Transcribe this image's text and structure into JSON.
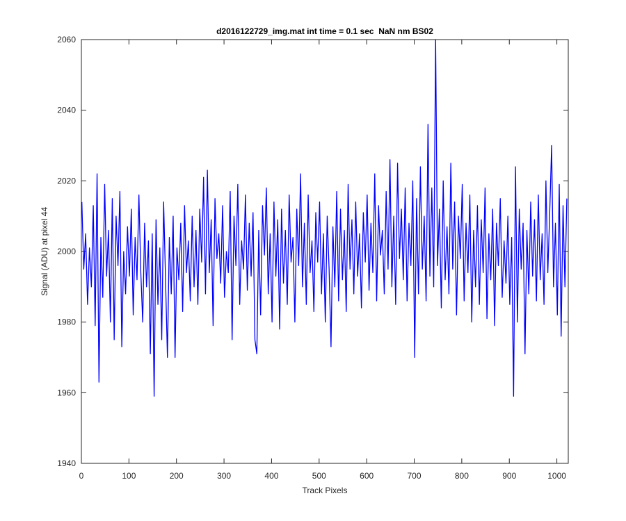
{
  "chart_data": {
    "type": "line",
    "title": "d2016122729_img.mat int time = 0.1 sec  NaN nm BS02",
    "x_label": "Track Pixels",
    "y_label": "Signal (ADU) at pixel 44",
    "color": "#0000ff",
    "xlim": [
      0,
      1024
    ],
    "xticks": [
      0,
      100,
      200,
      300,
      400,
      500,
      600,
      700,
      800,
      900,
      1000
    ],
    "ylim": [
      1940,
      2060
    ],
    "yticks": [
      1940,
      1960,
      1980,
      2000,
      2020,
      2040,
      2060
    ],
    "x": [
      1,
      5,
      9,
      13,
      17,
      21,
      25,
      29,
      33,
      37,
      41,
      45,
      49,
      53,
      57,
      61,
      65,
      69,
      73,
      77,
      81,
      85,
      89,
      93,
      97,
      101,
      105,
      109,
      113,
      117,
      121,
      125,
      129,
      133,
      137,
      141,
      145,
      149,
      153,
      157,
      161,
      165,
      169,
      173,
      177,
      181,
      185,
      189,
      193,
      197,
      201,
      205,
      209,
      213,
      217,
      221,
      225,
      229,
      233,
      237,
      241,
      245,
      249,
      253,
      257,
      261,
      265,
      269,
      273,
      277,
      281,
      285,
      289,
      293,
      297,
      301,
      305,
      309,
      313,
      317,
      321,
      325,
      329,
      333,
      337,
      341,
      345,
      349,
      353,
      357,
      361,
      365,
      369,
      373,
      377,
      381,
      385,
      389,
      393,
      397,
      401,
      405,
      409,
      413,
      417,
      421,
      425,
      429,
      433,
      437,
      441,
      445,
      449,
      453,
      457,
      461,
      465,
      469,
      473,
      477,
      481,
      485,
      489,
      493,
      497,
      501,
      505,
      509,
      513,
      517,
      521,
      525,
      529,
      533,
      537,
      541,
      545,
      549,
      553,
      557,
      561,
      565,
      569,
      573,
      577,
      581,
      585,
      589,
      593,
      597,
      601,
      605,
      609,
      613,
      617,
      621,
      625,
      629,
      633,
      637,
      641,
      645,
      649,
      653,
      657,
      661,
      665,
      669,
      673,
      677,
      681,
      685,
      689,
      693,
      697,
      701,
      705,
      709,
      713,
      717,
      721,
      725,
      729,
      733,
      737,
      741,
      745,
      749,
      753,
      757,
      761,
      765,
      769,
      773,
      777,
      781,
      785,
      789,
      793,
      797,
      801,
      805,
      809,
      813,
      817,
      821,
      825,
      829,
      833,
      837,
      841,
      845,
      849,
      853,
      857,
      861,
      865,
      869,
      873,
      877,
      881,
      885,
      889,
      893,
      897,
      901,
      905,
      909,
      913,
      917,
      921,
      925,
      929,
      933,
      937,
      941,
      945,
      949,
      953,
      957,
      961,
      965,
      969,
      973,
      977,
      981,
      985,
      989,
      993,
      997,
      1001,
      1005,
      1009,
      1013,
      1017,
      1021
    ],
    "values": [
      2014,
      1995,
      2005,
      1985,
      2001,
      1990,
      2013,
      1979,
      2022,
      1963,
      2004,
      1987,
      2019,
      1993,
      2006,
      1980,
      2015,
      1975,
      2010,
      1996,
      2017,
      1973,
      2000,
      1988,
      2007,
      1993,
      2012,
      1982,
      2004,
      1992,
      2016,
      1994,
      1980,
      2008,
      1990,
      2003,
      1971,
      2005,
      1959,
      2009,
      1985,
      2001,
      1975,
      2014,
      1992,
      1970,
      2004,
      1988,
      2010,
      1970,
      2001,
      1992,
      2008,
      1983,
      2013,
      1994,
      2003,
      1986,
      2010,
      1990,
      2006,
      1985,
      2012,
      1997,
      2021,
      1988,
      2023,
      1994,
      2009,
      1979,
      2015,
      1998,
      2005,
      1991,
      2013,
      1987,
      2000,
      1994,
      2017,
      1975,
      2010,
      1996,
      2019,
      1985,
      2003,
      1995,
      2016,
      1989,
      2008,
      1993,
      2011,
      1975,
      1971,
      2006,
      1982,
      2013,
      1999,
      2018,
      1988,
      2005,
      1980,
      2014,
      1993,
      2009,
      1978,
      2012,
      1991,
      2006,
      1985,
      2016,
      1997,
      2004,
      1980,
      2012,
      1996,
      2022,
      1990,
      2008,
      1985,
      2016,
      1994,
      2003,
      1983,
      2011,
      1997,
      2014,
      1988,
      2005,
      1980,
      2010,
      1995,
      1973,
      2007,
      1990,
      2017,
      1986,
      2012,
      1992,
      2006,
      1983,
      2019,
      1995,
      2009,
      1988,
      2014,
      1993,
      2005,
      1984,
      2011,
      1997,
      2016,
      1989,
      2008,
      1994,
      2022,
      1986,
      2013,
      1999,
      2006,
      1988,
      2017,
      1995,
      2026,
      1990,
      2010,
      1985,
      2025,
      1998,
      2012,
      1992,
      2018,
      1986,
      2008,
      1996,
      2020,
      1970,
      2015,
      1988,
      2024,
      1995,
      2010,
      1986,
      2036,
      1993,
      2018,
      1990,
      2060,
      1996,
      2012,
      1984,
      2020,
      1992,
      2007,
      1988,
      2025,
      1995,
      2014,
      1982,
      2010,
      1998,
      2019,
      1986,
      2008,
      1994,
      2016,
      1980,
      2006,
      1990,
      2013,
      1985,
      2009,
      1994,
      2018,
      1981,
      2005,
      1992,
      2012,
      1979,
      2008,
      1996,
      2015,
      1987,
      2003,
      1991,
      2010,
      1985,
      2004,
      1959,
      2024,
      1980,
      2012,
      1995,
      2008,
      1971,
      2006,
      1988,
      2014,
      1993,
      2009,
      1986,
      2016,
      1992,
      2005,
      1985,
      2020,
      1994,
      2011,
      2030,
      1990,
      2008,
      1982,
      2019,
      1976,
      2013,
      1990,
      2015
    ]
  }
}
